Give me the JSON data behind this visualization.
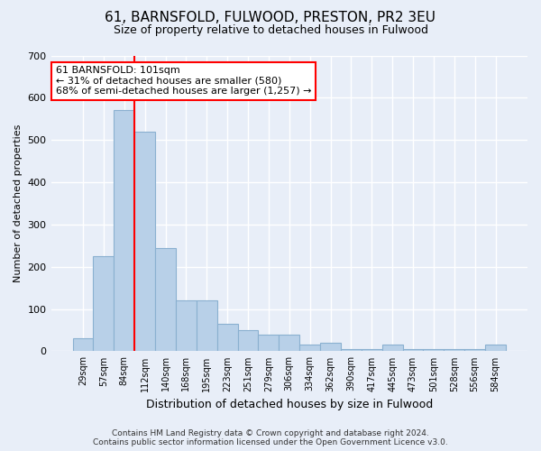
{
  "title": "61, BARNSFOLD, FULWOOD, PRESTON, PR2 3EU",
  "subtitle": "Size of property relative to detached houses in Fulwood",
  "xlabel": "Distribution of detached houses by size in Fulwood",
  "ylabel": "Number of detached properties",
  "categories": [
    "29sqm",
    "57sqm",
    "84sqm",
    "112sqm",
    "140sqm",
    "168sqm",
    "195sqm",
    "223sqm",
    "251sqm",
    "279sqm",
    "306sqm",
    "334sqm",
    "362sqm",
    "390sqm",
    "417sqm",
    "445sqm",
    "473sqm",
    "501sqm",
    "528sqm",
    "556sqm",
    "584sqm"
  ],
  "values": [
    30,
    225,
    570,
    520,
    245,
    120,
    120,
    65,
    50,
    40,
    40,
    15,
    20,
    5,
    5,
    15,
    5,
    5,
    5,
    5,
    15
  ],
  "bar_color": "#b8d0e8",
  "bar_edge_color": "#8ab0d0",
  "vline_index": 2.5,
  "vline_color": "red",
  "annotation_text": "61 BARNSFOLD: 101sqm\n← 31% of detached houses are smaller (580)\n68% of semi-detached houses are larger (1,257) →",
  "annotation_box_color": "white",
  "annotation_box_edge_color": "red",
  "ylim": [
    0,
    700
  ],
  "yticks": [
    0,
    100,
    200,
    300,
    400,
    500,
    600,
    700
  ],
  "footer": "Contains HM Land Registry data © Crown copyright and database right 2024.\nContains public sector information licensed under the Open Government Licence v3.0.",
  "bg_color": "#e8eef8",
  "plot_bg_color": "#e8eef8",
  "grid_color": "white"
}
